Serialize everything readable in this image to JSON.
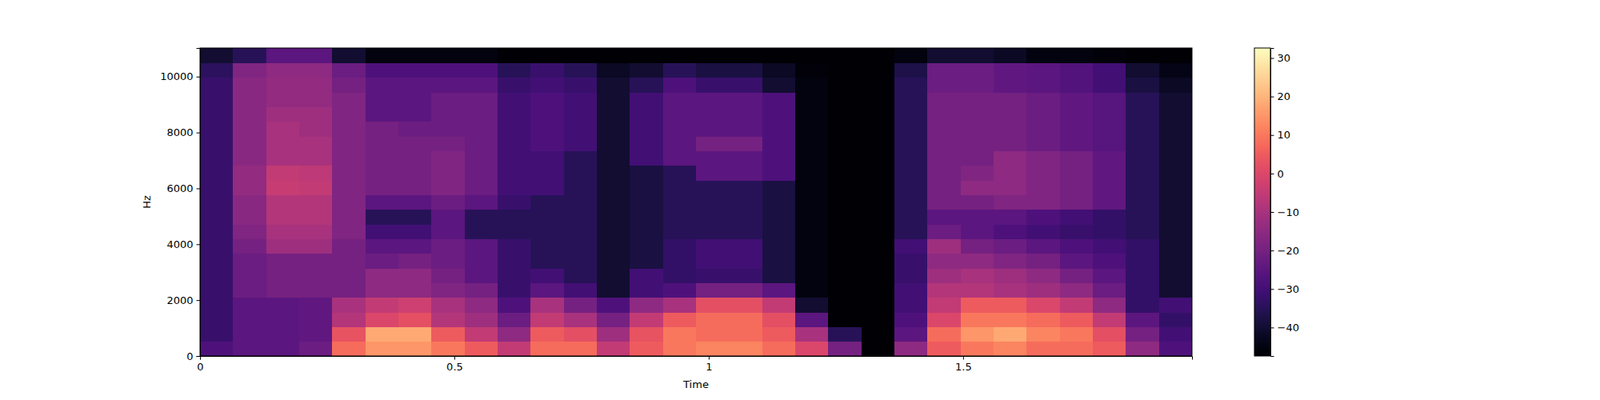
{
  "chart_data": {
    "type": "heatmap",
    "xlabel": "Time",
    "ylabel": "Hz",
    "color": "magma",
    "xlim": [
      0,
      1.95
    ],
    "ylim": [
      0,
      11025
    ],
    "xticks": [
      0,
      0.5,
      1,
      1.5
    ],
    "yticks": [
      0,
      2000,
      4000,
      6000,
      8000,
      10000
    ],
    "x": [
      0,
      0.065,
      0.13,
      0.195,
      0.26,
      0.325,
      0.39,
      0.455,
      0.52,
      0.585,
      0.65,
      0.715,
      0.78,
      0.845,
      0.91,
      0.975,
      1.04,
      1.105,
      1.17,
      1.235,
      1.3,
      1.365,
      1.43,
      1.495,
      1.56,
      1.625,
      1.69,
      1.755,
      1.82,
      1.885,
      1.95
    ],
    "y": [
      0,
      525,
      1050,
      1575,
      2100,
      2625,
      3150,
      3675,
      4200,
      4725,
      5250,
      5775,
      6300,
      6825,
      7350,
      7875,
      8400,
      8925,
      9450,
      9975,
      10500,
      11025
    ],
    "values": [
      [
        -28,
        -25,
        -25,
        -22,
        8,
        15,
        15,
        10,
        5,
        -5,
        8,
        8,
        -5,
        5,
        10,
        12,
        12,
        8,
        0,
        -20,
        -47,
        -15,
        5,
        10,
        12,
        8,
        8,
        5,
        -15,
        -28
      ],
      [
        -32,
        -25,
        -25,
        -24,
        3,
        18,
        18,
        5,
        -5,
        -15,
        5,
        2,
        -12,
        3,
        10,
        8,
        8,
        5,
        -10,
        -35,
        -47,
        -25,
        8,
        15,
        18,
        12,
        10,
        2,
        -20,
        -30
      ],
      [
        -32,
        -25,
        -25,
        -24,
        -8,
        0,
        2,
        -8,
        -12,
        -22,
        -5,
        -10,
        -20,
        -5,
        5,
        8,
        8,
        2,
        -25,
        -47,
        -47,
        -28,
        0,
        10,
        10,
        8,
        5,
        -5,
        -25,
        -33
      ],
      [
        -32,
        -25,
        -25,
        -24,
        -10,
        -5,
        -3,
        -10,
        -15,
        -28,
        -10,
        -20,
        -28,
        -15,
        -10,
        2,
        2,
        -5,
        -40,
        -47,
        -47,
        -30,
        -5,
        5,
        5,
        0,
        -5,
        -15,
        -33,
        -30
      ],
      [
        -32,
        -22,
        -20,
        -20,
        -20,
        -15,
        -15,
        -18,
        -20,
        -32,
        -25,
        -30,
        -40,
        -30,
        -28,
        -20,
        -20,
        -25,
        -45,
        -47,
        -47,
        -30,
        -8,
        -8,
        -10,
        -12,
        -15,
        -22,
        -33,
        -40
      ],
      [
        -32,
        -22,
        -20,
        -20,
        -20,
        -15,
        -15,
        -20,
        -25,
        -32,
        -30,
        -35,
        -40,
        -30,
        -33,
        -32,
        -32,
        -38,
        -45,
        -47,
        -47,
        -32,
        -12,
        -10,
        -12,
        -15,
        -20,
        -25,
        -33,
        -40
      ],
      [
        -32,
        -22,
        -20,
        -20,
        -20,
        -22,
        -20,
        -22,
        -25,
        -32,
        -35,
        -35,
        -40,
        -38,
        -33,
        -30,
        -30,
        -38,
        -45,
        -47,
        -47,
        -32,
        -15,
        -15,
        -18,
        -20,
        -25,
        -28,
        -33,
        -40
      ],
      [
        -32,
        -20,
        -12,
        -12,
        -20,
        -25,
        -25,
        -22,
        -25,
        -32,
        -35,
        -35,
        -40,
        -38,
        -33,
        -30,
        -30,
        -38,
        -45,
        -47,
        -47,
        -30,
        -12,
        -20,
        -22,
        -25,
        -28,
        -30,
        -33,
        -40
      ],
      [
        -32,
        -18,
        -10,
        -10,
        -18,
        -30,
        -30,
        -25,
        -35,
        -35,
        -35,
        -35,
        -40,
        -38,
        -35,
        -35,
        -35,
        -38,
        -45,
        -47,
        -47,
        -35,
        -22,
        -25,
        -28,
        -30,
        -32,
        -33,
        -35,
        -40
      ],
      [
        -32,
        -16,
        -8,
        -8,
        -18,
        -35,
        -35,
        -25,
        -35,
        -35,
        -35,
        -35,
        -40,
        -38,
        -35,
        -35,
        -35,
        -38,
        -45,
        -47,
        -47,
        -35,
        -25,
        -25,
        -25,
        -28,
        -30,
        -33,
        -35,
        -40
      ],
      [
        -32,
        -16,
        -8,
        -8,
        -18,
        -25,
        -25,
        -22,
        -25,
        -32,
        -35,
        -35,
        -40,
        -38,
        -35,
        -35,
        -35,
        -38,
        -45,
        -47,
        -47,
        -35,
        -20,
        -20,
        -18,
        -18,
        -20,
        -24,
        -35,
        -40
      ],
      [
        -32,
        -14,
        -4,
        -5,
        -18,
        -20,
        -20,
        -18,
        -22,
        -30,
        -30,
        -35,
        -40,
        -38,
        -35,
        -35,
        -35,
        -38,
        -45,
        -47,
        -47,
        -35,
        -20,
        -15,
        -15,
        -18,
        -20,
        -24,
        -35,
        -40
      ],
      [
        -32,
        -14,
        -5,
        -6,
        -18,
        -20,
        -20,
        -18,
        -22,
        -30,
        -30,
        -35,
        -40,
        -38,
        -35,
        -25,
        -25,
        -28,
        -45,
        -47,
        -47,
        -35,
        -20,
        -18,
        -15,
        -18,
        -20,
        -24,
        -35,
        -40
      ],
      [
        -32,
        -16,
        -10,
        -10,
        -18,
        -20,
        -20,
        -18,
        -22,
        -30,
        -30,
        -35,
        -40,
        -30,
        -25,
        -25,
        -25,
        -28,
        -45,
        -47,
        -47,
        -35,
        -20,
        -20,
        -15,
        -18,
        -20,
        -24,
        -35,
        -40
      ],
      [
        -32,
        -16,
        -10,
        -10,
        -18,
        -20,
        -20,
        -20,
        -22,
        -30,
        -28,
        -30,
        -40,
        -30,
        -25,
        -20,
        -20,
        -28,
        -45,
        -47,
        -47,
        -35,
        -20,
        -20,
        -20,
        -22,
        -24,
        -26,
        -35,
        -40
      ],
      [
        -32,
        -16,
        -10,
        -12,
        -18,
        -20,
        -22,
        -22,
        -22,
        -30,
        -28,
        -30,
        -40,
        -30,
        -25,
        -25,
        -25,
        -28,
        -45,
        -47,
        -47,
        -35,
        -20,
        -20,
        -20,
        -22,
        -24,
        -26,
        -35,
        -40
      ],
      [
        -32,
        -16,
        -12,
        -12,
        -18,
        -25,
        -25,
        -22,
        -22,
        -30,
        -28,
        -30,
        -40,
        -30,
        -25,
        -25,
        -25,
        -28,
        -45,
        -47,
        -47,
        -35,
        -20,
        -20,
        -20,
        -22,
        -24,
        -26,
        -35,
        -40
      ],
      [
        -32,
        -16,
        -14,
        -14,
        -18,
        -25,
        -25,
        -22,
        -22,
        -30,
        -28,
        -30,
        -40,
        -30,
        -25,
        -25,
        -25,
        -28,
        -45,
        -47,
        -47,
        -35,
        -20,
        -20,
        -20,
        -22,
        -24,
        -26,
        -35,
        -40
      ],
      [
        -32,
        -16,
        -14,
        -14,
        -20,
        -25,
        -25,
        -25,
        -25,
        -32,
        -30,
        -32,
        -40,
        -35,
        -28,
        -32,
        -32,
        -40,
        -45,
        -47,
        -47,
        -35,
        -22,
        -22,
        -24,
        -25,
        -27,
        -30,
        -38,
        -42
      ],
      [
        -34,
        -18,
        -15,
        -15,
        -22,
        -28,
        -28,
        -28,
        -28,
        -35,
        -32,
        -35,
        -42,
        -40,
        -35,
        -38,
        -38,
        -42,
        -46,
        -47,
        -47,
        -37,
        -22,
        -22,
        -24,
        -25,
        -27,
        -30,
        -40,
        -44
      ],
      [
        -40,
        -35,
        -25,
        -25,
        -40,
        -45,
        -45,
        -45,
        -45,
        -47,
        -47,
        -47,
        -47,
        -47,
        -47,
        -47,
        -47,
        -47,
        -47,
        -47,
        -47,
        -45,
        -40,
        -40,
        -42,
        -45,
        -45,
        -46,
        -47,
        -47
      ]
    ],
    "colorbar": {
      "range": [
        -47.4,
        32.6
      ],
      "ticks": [
        {
          "value": -40,
          "label": "−40"
        },
        {
          "value": -30,
          "label": "−30"
        },
        {
          "value": -20,
          "label": "−20"
        },
        {
          "value": -10,
          "label": "−10"
        },
        0,
        10,
        20,
        30
      ]
    }
  }
}
